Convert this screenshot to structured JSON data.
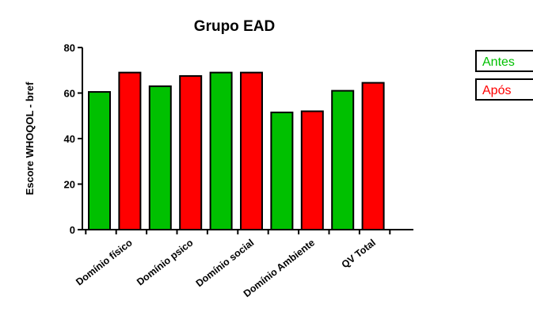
{
  "chart_data": {
    "type": "bar",
    "title": "Grupo EAD",
    "ylabel": "Escore WHOQOL - bref",
    "xlabel": "",
    "ylim": [
      0,
      80
    ],
    "yticks": [
      0,
      20,
      40,
      60,
      80
    ],
    "categories": [
      "Domínio físico",
      "Domínio psico",
      "Domínio social",
      "Domínio Ambiente",
      "QV Total"
    ],
    "series": [
      {
        "name": "Antes",
        "color": "#00c000",
        "values": [
          60.5,
          63,
          69,
          51.5,
          61
        ]
      },
      {
        "name": "Após",
        "color": "#ff0000",
        "values": [
          69,
          67.5,
          69,
          52,
          64.5
        ]
      }
    ],
    "grid": false,
    "legend_position": "top-right"
  }
}
